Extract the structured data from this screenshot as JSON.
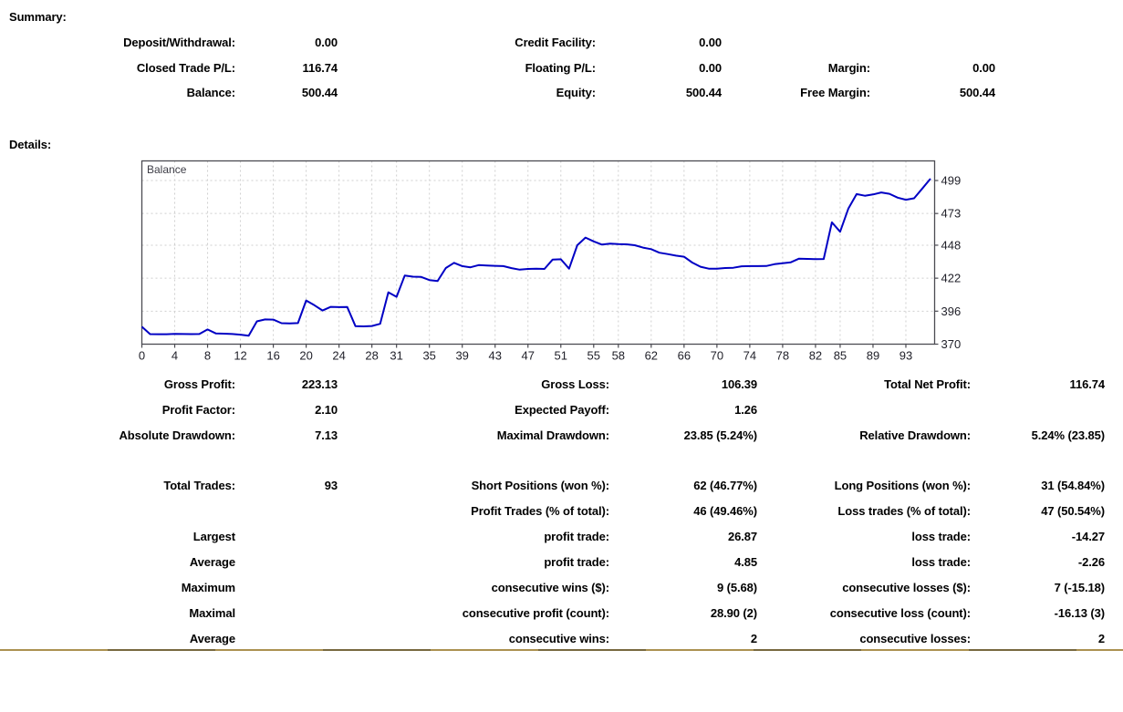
{
  "summary": {
    "heading": "Summary:",
    "rows": [
      [
        "Deposit/Withdrawal:",
        "0.00",
        "Credit Facility:",
        "0.00",
        "",
        ""
      ],
      [
        "Closed Trade P/L:",
        "116.74",
        "Floating P/L:",
        "0.00",
        "Margin:",
        "0.00"
      ],
      [
        "Balance:",
        "500.44",
        "Equity:",
        "500.44",
        "Free Margin:",
        "500.44"
      ]
    ]
  },
  "details": {
    "heading": "Details:",
    "rows": [
      [
        "Gross Profit:",
        "223.13",
        "Gross Loss:",
        "106.39",
        "Total Net Profit:",
        "116.74"
      ],
      [
        "Profit Factor:",
        "2.10",
        "Expected Payoff:",
        "1.26",
        "",
        ""
      ],
      [
        "Absolute Drawdown:",
        "7.13",
        "Maximal Drawdown:",
        "23.85 (5.24%)",
        "Relative Drawdown:",
        "5.24% (23.85)"
      ],
      [
        "Total Trades:",
        "93",
        "Short Positions (won %):",
        "62 (46.77%)",
        "Long Positions (won %):",
        "31 (54.84%)"
      ],
      [
        "",
        "",
        "Profit Trades (% of total):",
        "46 (49.46%)",
        "Loss trades (% of total):",
        "47 (50.54%)"
      ],
      [
        "Largest",
        "",
        "profit trade:",
        "26.87",
        "loss trade:",
        "-14.27"
      ],
      [
        "Average",
        "",
        "profit trade:",
        "4.85",
        "loss trade:",
        "-2.26"
      ],
      [
        "Maximum",
        "",
        "consecutive wins ($):",
        "9 (5.68)",
        "consecutive losses ($):",
        "7 (-15.18)"
      ],
      [
        "Maximal",
        "",
        "consecutive profit (count):",
        "28.90 (2)",
        "consecutive loss (count):",
        "-16.13 (3)"
      ],
      [
        "Average",
        "",
        "consecutive wins:",
        "2",
        "consecutive losses:",
        "2"
      ]
    ]
  },
  "chart_data": {
    "type": "line",
    "series_label": "Balance",
    "x_start": 0,
    "x_step": 1,
    "x_ticks": [
      0,
      4,
      8,
      12,
      16,
      20,
      24,
      28,
      31,
      35,
      39,
      43,
      47,
      51,
      55,
      58,
      62,
      66,
      70,
      74,
      78,
      82,
      85,
      89,
      93
    ],
    "y_ticks": [
      370,
      396,
      422,
      448,
      473,
      499
    ],
    "xlim": [
      0,
      96.5
    ],
    "ylim": [
      370,
      502
    ],
    "grid": true,
    "legend_position": "inside-top-left",
    "line_color": "#0000C4",
    "grid_color": "#cfcfcf",
    "values": [
      383.7,
      377.9,
      377.8,
      377.8,
      378.1,
      378.0,
      377.9,
      378.0,
      381.6,
      378.5,
      378.3,
      378.0,
      377.5,
      376.6,
      388.0,
      389.5,
      389.3,
      386.5,
      386.4,
      386.6,
      404.4,
      400.7,
      396.5,
      399.4,
      399.2,
      399.3,
      384.2,
      384.0,
      384.3,
      386.0,
      410.9,
      407.3,
      424.1,
      423.2,
      423.0,
      420.5,
      419.8,
      430.0,
      434.1,
      431.5,
      430.6,
      432.3,
      432.0,
      431.7,
      431.5,
      429.9,
      428.7,
      429.3,
      429.4,
      429.3,
      436.7,
      436.9,
      429.5,
      448.0,
      454.0,
      451.0,
      448.5,
      449.3,
      448.8,
      448.7,
      448.0,
      446.1,
      444.9,
      442.1,
      441.0,
      439.8,
      438.9,
      434.3,
      431.0,
      429.5,
      429.4,
      430.0,
      430.2,
      431.4,
      431.5,
      431.5,
      431.6,
      433.0,
      433.8,
      434.5,
      437.4,
      437.2,
      437.0,
      437.1,
      466.0,
      458.6,
      476.8,
      488.3,
      487.0,
      488.0,
      489.6,
      488.5,
      485.5,
      483.8,
      485.0,
      492.7,
      500.44
    ]
  },
  "divider": {
    "color_light": "#ab9150",
    "color_dark": "#77683f"
  }
}
